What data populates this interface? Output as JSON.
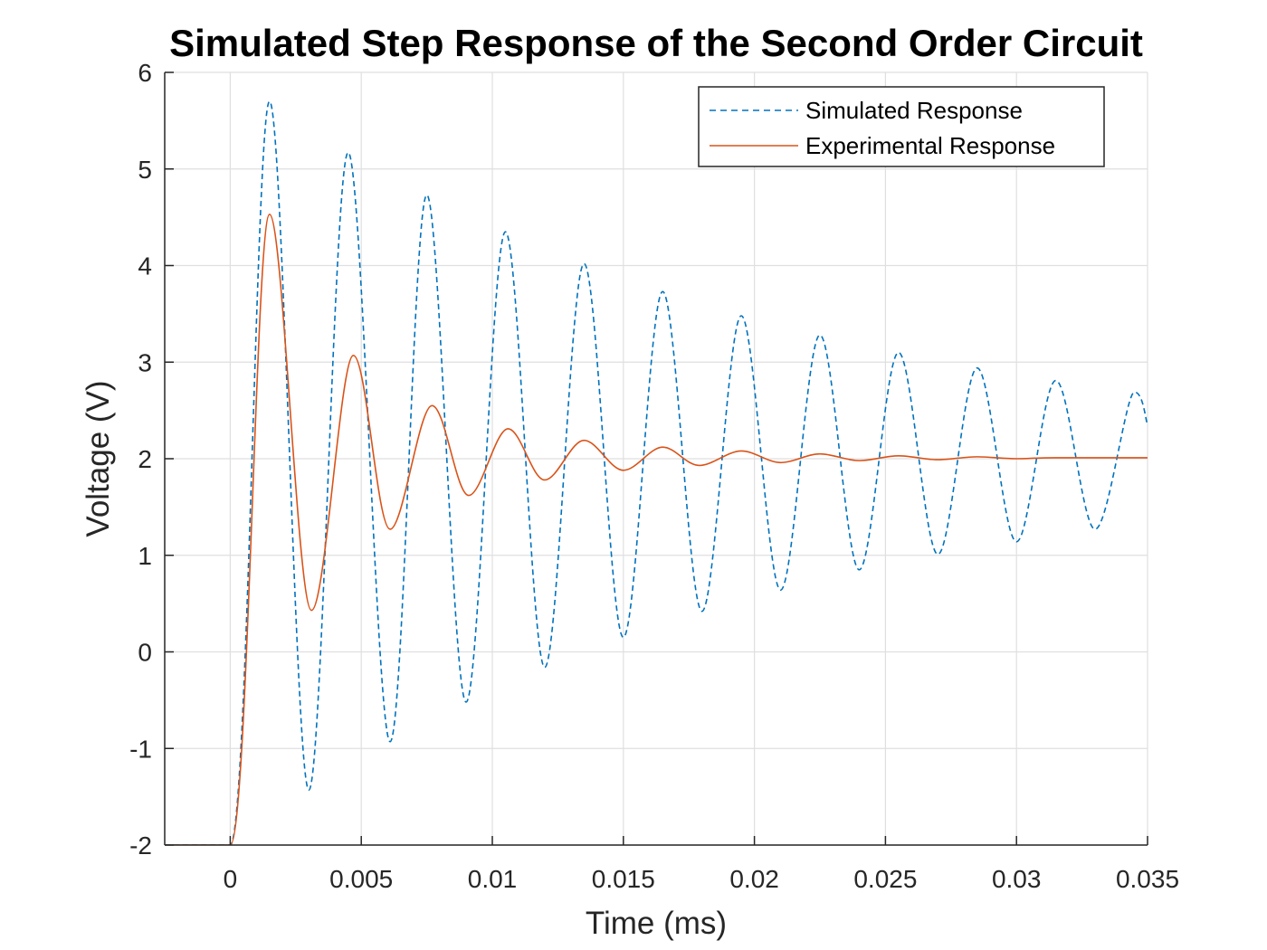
{
  "chart_data": {
    "type": "line",
    "title": "Simulated Step Response of the Second Order Circuit",
    "xlabel": "Time (ms)",
    "ylabel": "Voltage (V)",
    "xlim": [
      -0.0025,
      0.035
    ],
    "ylim": [
      -2,
      6
    ],
    "xticks": [
      0,
      0.005,
      0.01,
      0.015,
      0.02,
      0.025,
      0.03,
      0.035
    ],
    "xtick_labels": [
      "0",
      "0.005",
      "0.01",
      "0.015",
      "0.02",
      "0.025",
      "0.03",
      "0.035"
    ],
    "yticks": [
      -2,
      -1,
      0,
      1,
      2,
      3,
      4,
      5,
      6
    ],
    "ytick_labels": [
      "-2",
      "-1",
      "0",
      "1",
      "2",
      "3",
      "4",
      "5",
      "6"
    ],
    "grid": true,
    "legend_position": "top-right",
    "series": [
      {
        "name": "Simulated Response",
        "color": "#0072BD",
        "line_style": "dashed",
        "points": [
          [
            -0.0025,
            -2.0
          ],
          [
            0.0,
            -2.0
          ],
          [
            0.0015,
            5.7
          ],
          [
            0.003,
            -1.43
          ],
          [
            0.0045,
            5.17
          ],
          [
            0.0061,
            -0.93
          ],
          [
            0.0075,
            4.73
          ],
          [
            0.009,
            -0.52
          ],
          [
            0.0105,
            4.35
          ],
          [
            0.012,
            -0.16
          ],
          [
            0.0135,
            4.02
          ],
          [
            0.015,
            0.15
          ],
          [
            0.0165,
            3.73
          ],
          [
            0.018,
            0.42
          ],
          [
            0.0195,
            3.48
          ],
          [
            0.021,
            0.64
          ],
          [
            0.0225,
            3.28
          ],
          [
            0.024,
            0.85
          ],
          [
            0.0255,
            3.1
          ],
          [
            0.027,
            1.01
          ],
          [
            0.0285,
            2.94
          ],
          [
            0.03,
            1.14
          ],
          [
            0.0315,
            2.81
          ],
          [
            0.033,
            1.27
          ],
          [
            0.0345,
            2.69
          ],
          [
            0.035,
            2.35
          ]
        ]
      },
      {
        "name": "Experimental Response",
        "color": "#D95319",
        "line_style": "solid",
        "points": [
          [
            -0.0025,
            -2.0
          ],
          [
            0.0,
            -2.0
          ],
          [
            0.0015,
            4.53
          ],
          [
            0.0031,
            0.43
          ],
          [
            0.0047,
            3.07
          ],
          [
            0.0061,
            1.27
          ],
          [
            0.0077,
            2.55
          ],
          [
            0.0091,
            1.62
          ],
          [
            0.0106,
            2.31
          ],
          [
            0.012,
            1.78
          ],
          [
            0.0135,
            2.19
          ],
          [
            0.015,
            1.88
          ],
          [
            0.0165,
            2.12
          ],
          [
            0.0179,
            1.93
          ],
          [
            0.0195,
            2.08
          ],
          [
            0.021,
            1.96
          ],
          [
            0.0225,
            2.05
          ],
          [
            0.024,
            1.98
          ],
          [
            0.0255,
            2.03
          ],
          [
            0.027,
            1.99
          ],
          [
            0.0285,
            2.02
          ],
          [
            0.03,
            2.0
          ],
          [
            0.0315,
            2.01
          ],
          [
            0.035,
            2.01
          ]
        ]
      }
    ]
  }
}
